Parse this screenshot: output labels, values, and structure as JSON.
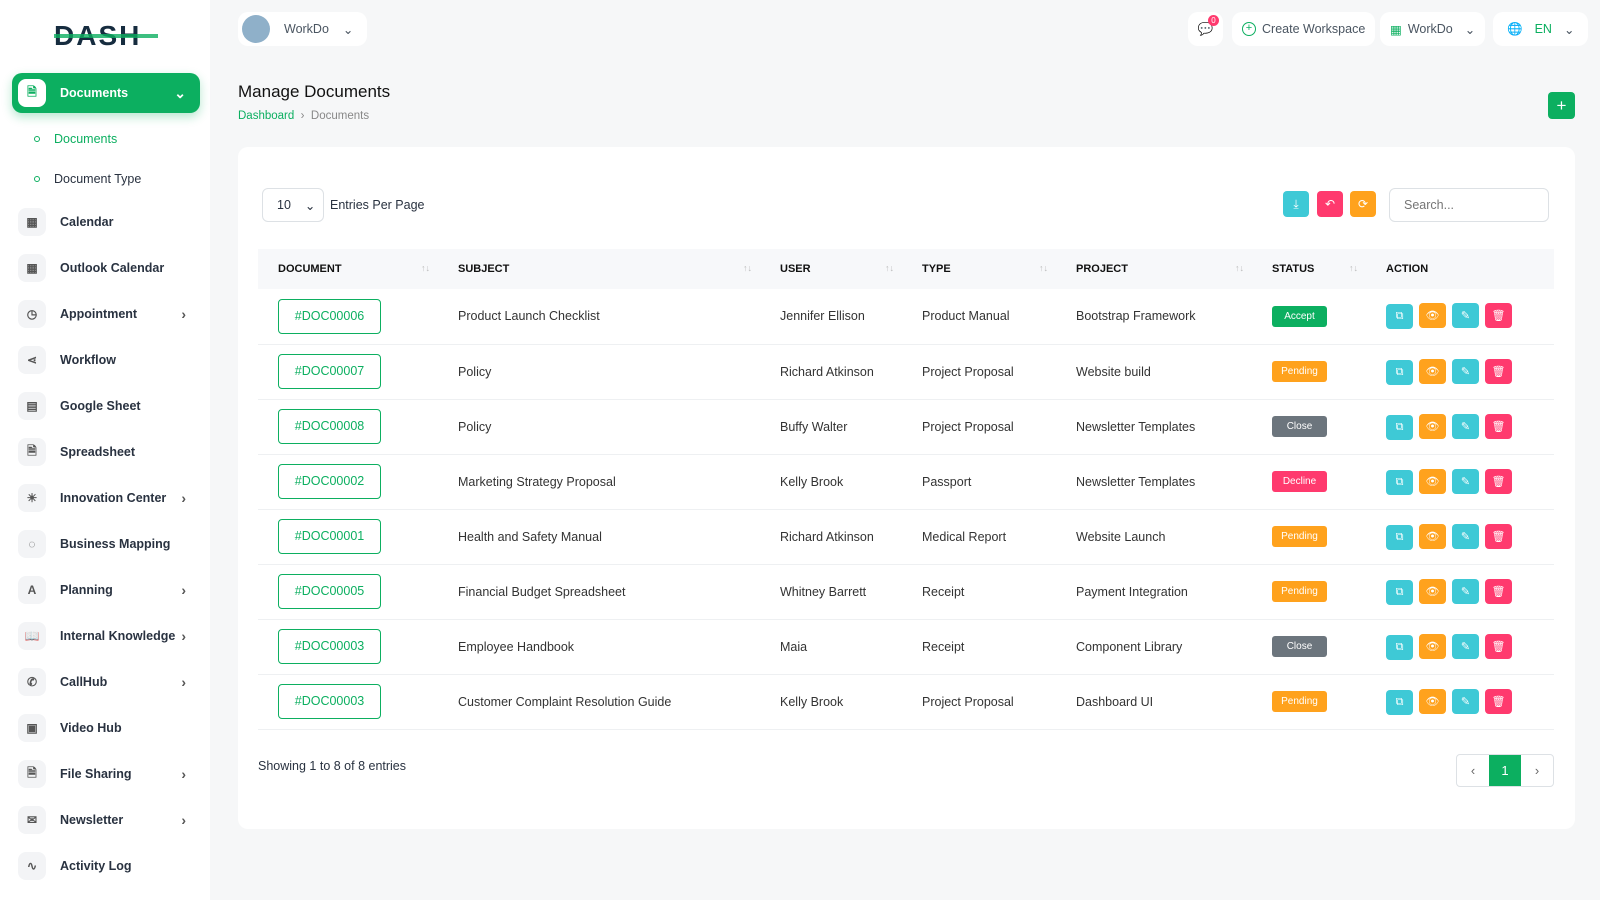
{
  "app": {
    "logo": "DASH",
    "workspace": "WorkDo",
    "notifications": "0",
    "create_workspace": "Create Workspace",
    "workspace_menu": "WorkDo",
    "language": "EN"
  },
  "colors": {
    "primary": "#0caf60",
    "info": "#3ec9d6",
    "danger": "#ff3a6e",
    "warning": "#ffa21d",
    "secondary": "#6c757d"
  },
  "sidebar": {
    "active": {
      "label": "Documents",
      "icon": "file-icon"
    },
    "sub": [
      {
        "label": "Documents"
      },
      {
        "label": "Document Type"
      }
    ],
    "items": [
      {
        "label": "Calendar",
        "icon": "calendar-icon",
        "chev": false
      },
      {
        "label": "Outlook Calendar",
        "icon": "calendar-icon",
        "chev": false
      },
      {
        "label": "Appointment",
        "icon": "calendar-clock-icon",
        "chev": true
      },
      {
        "label": "Workflow",
        "icon": "share-icon",
        "chev": false
      },
      {
        "label": "Google Sheet",
        "icon": "table-icon",
        "chev": false
      },
      {
        "label": "Spreadsheet",
        "icon": "file-icon",
        "chev": false
      },
      {
        "label": "Innovation Center",
        "icon": "bulb-icon",
        "chev": true
      },
      {
        "label": "Business Mapping",
        "icon": "circle-dashed-icon",
        "chev": false
      },
      {
        "label": "Planning",
        "icon": "planning-icon",
        "chev": true
      },
      {
        "label": "Internal Knowledge",
        "icon": "book-icon",
        "chev": true
      },
      {
        "label": "CallHub",
        "icon": "phone-icon",
        "chev": true
      },
      {
        "label": "Video Hub",
        "icon": "video-icon",
        "chev": false
      },
      {
        "label": "File Sharing",
        "icon": "file-icon",
        "chev": true
      },
      {
        "label": "Newsletter",
        "icon": "mail-icon",
        "chev": true
      },
      {
        "label": "Activity Log",
        "icon": "activity-icon",
        "chev": false
      }
    ]
  },
  "page": {
    "title": "Manage Documents",
    "breadcrumb": [
      "Dashboard",
      "Documents"
    ]
  },
  "table": {
    "entries": "10",
    "entries_label": "Entries Per Page",
    "search_placeholder": "Search...",
    "columns": [
      "DOCUMENT",
      "SUBJECT",
      "USER",
      "TYPE",
      "PROJECT",
      "STATUS",
      "ACTION"
    ],
    "rows": [
      [
        "#DOC00006",
        "Product Launch Checklist",
        "Jennifer Ellison",
        "Product Manual",
        "Bootstrap Framework",
        "Accept"
      ],
      [
        "#DOC00007",
        "Policy",
        "Richard Atkinson",
        "Project Proposal",
        "Website build",
        "Pending"
      ],
      [
        "#DOC00008",
        "Policy",
        "Buffy Walter",
        "Project Proposal",
        "Newsletter Templates",
        "Close"
      ],
      [
        "#DOC00002",
        "Marketing Strategy Proposal",
        "Kelly Brook",
        "Passport",
        "Newsletter Templates",
        "Decline"
      ],
      [
        "#DOC00001",
        "Health and Safety Manual",
        "Richard Atkinson",
        "Medical Report",
        "Website Launch",
        "Pending"
      ],
      [
        "#DOC00005",
        "Financial Budget Spreadsheet",
        "Whitney Barrett",
        "Receipt",
        "Payment Integration",
        "Pending"
      ],
      [
        "#DOC00003",
        "Employee Handbook",
        "Maia",
        "Receipt",
        "Component Library",
        "Close"
      ],
      [
        "#DOC00003",
        "Customer Complaint Resolution Guide",
        "Kelly Brook",
        "Project Proposal",
        "Dashboard UI",
        "Pending"
      ]
    ],
    "showing": "Showing 1 to 8 of 8 entries",
    "page": "1"
  }
}
